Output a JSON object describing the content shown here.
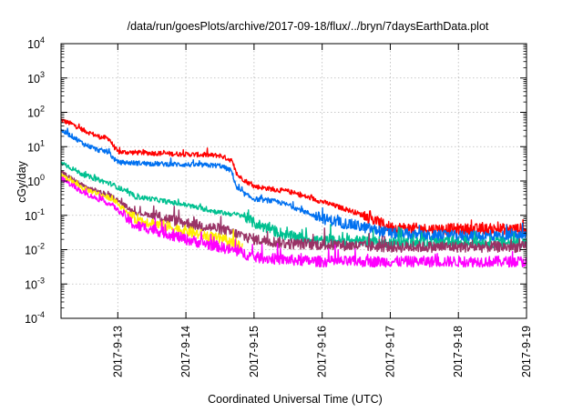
{
  "chart_data": {
    "type": "line",
    "title": "/data/run/goesPlots/archive/2017-09-18/flux/../bryn/7daysEarthData.plot",
    "xlabel": "Coordinated Universal Time (UTC)",
    "ylabel": "cGy/day",
    "y_scale": "log",
    "ylim": [
      0.0001,
      10000
    ],
    "y_ticks": [
      {
        "value": 0.0001,
        "base": "10",
        "exp": "-4"
      },
      {
        "value": 0.001,
        "base": "10",
        "exp": "-3"
      },
      {
        "value": 0.01,
        "base": "10",
        "exp": "-2"
      },
      {
        "value": 0.1,
        "base": "10",
        "exp": "-1"
      },
      {
        "value": 1,
        "base": "10",
        "exp": "0"
      },
      {
        "value": 10,
        "base": "10",
        "exp": "1"
      },
      {
        "value": 100,
        "base": "10",
        "exp": "2"
      },
      {
        "value": 1000,
        "base": "10",
        "exp": "3"
      },
      {
        "value": 10000,
        "base": "10",
        "exp": "4"
      }
    ],
    "xlim": [
      "2017-09-12T04:00",
      "2017-09-19T00:00"
    ],
    "x_ticks": [
      "2017-9-13",
      "2017-9-14",
      "2017-9-15",
      "2017-9-16",
      "2017-9-17",
      "2017-9-18",
      "2017-9-19"
    ],
    "grid": true,
    "series": [
      {
        "color": "#ff0000",
        "x": [
          "2017-09-12T04:00",
          "2017-09-12T08:00",
          "2017-09-12T12:00",
          "2017-09-12T17:00",
          "2017-09-12T21:00",
          "2017-09-12T22:00",
          "2017-09-13T00:00",
          "2017-09-13T12:00",
          "2017-09-14T00:00",
          "2017-09-14T12:00",
          "2017-09-14T16:00",
          "2017-09-14T18:00",
          "2017-09-14T21:00",
          "2017-09-15T00:00",
          "2017-09-15T08:00",
          "2017-09-15T12:00",
          "2017-09-16T00:00",
          "2017-09-16T12:00",
          "2017-09-17T00:00",
          "2017-09-17T12:00",
          "2017-09-18T00:00",
          "2017-09-18T12:00",
          "2017-09-19T00:00"
        ],
        "y": [
          60,
          45,
          30,
          20,
          17,
          12,
          7,
          6.5,
          6,
          5.5,
          4,
          1.5,
          1,
          0.7,
          0.55,
          0.5,
          0.25,
          0.12,
          0.045,
          0.04,
          0.04,
          0.04,
          0.04
        ]
      },
      {
        "color": "#0070f0",
        "x": [
          "2017-09-12T04:00",
          "2017-09-12T08:00",
          "2017-09-12T12:00",
          "2017-09-12T17:00",
          "2017-09-12T21:00",
          "2017-09-12T22:00",
          "2017-09-13T00:00",
          "2017-09-13T12:00",
          "2017-09-14T00:00",
          "2017-09-14T12:00",
          "2017-09-14T16:00",
          "2017-09-14T18:00",
          "2017-09-14T21:00",
          "2017-09-15T00:00",
          "2017-09-15T08:00",
          "2017-09-15T12:00",
          "2017-09-16T00:00",
          "2017-09-16T12:00",
          "2017-09-17T00:00",
          "2017-09-17T12:00",
          "2017-09-18T00:00",
          "2017-09-18T12:00",
          "2017-09-19T00:00"
        ],
        "y": [
          30,
          20,
          12,
          8,
          7,
          5,
          3.5,
          3.2,
          3,
          2.8,
          2,
          0.6,
          0.4,
          0.3,
          0.25,
          0.2,
          0.08,
          0.05,
          0.03,
          0.025,
          0.025,
          0.025,
          0.025
        ]
      },
      {
        "color": "#00c090",
        "x": [
          "2017-09-12T04:00",
          "2017-09-12T12:00",
          "2017-09-12T22:00",
          "2017-09-13T06:00",
          "2017-09-13T12:00",
          "2017-09-14T00:00",
          "2017-09-14T12:00",
          "2017-09-14T20:00",
          "2017-09-15T00:00",
          "2017-09-15T12:00",
          "2017-09-16T00:00",
          "2017-09-16T12:00",
          "2017-09-17T00:00",
          "2017-09-18T00:00",
          "2017-09-19T00:00"
        ],
        "y": [
          3.5,
          1.5,
          0.8,
          0.35,
          0.3,
          0.2,
          0.12,
          0.1,
          0.06,
          0.025,
          0.018,
          0.018,
          0.016,
          0.016,
          0.016
        ]
      },
      {
        "color": "#993366",
        "x": [
          "2017-09-12T04:00",
          "2017-09-12T12:00",
          "2017-09-12T22:00",
          "2017-09-13T06:00",
          "2017-09-13T12:00",
          "2017-09-14T00:00",
          "2017-09-14T12:00",
          "2017-09-14T20:00",
          "2017-09-15T00:00",
          "2017-09-15T12:00",
          "2017-09-16T00:00",
          "2017-09-16T12:00",
          "2017-09-17T00:00",
          "2017-09-18T00:00",
          "2017-09-19T00:00"
        ],
        "y": [
          1.8,
          0.7,
          0.35,
          0.12,
          0.1,
          0.06,
          0.04,
          0.025,
          0.02,
          0.015,
          0.014,
          0.013,
          0.012,
          0.012,
          0.012
        ]
      },
      {
        "color": "#ffee00",
        "x": [
          "2017-09-12T04:00",
          "2017-09-12T12:00",
          "2017-09-12T22:00",
          "2017-09-13T06:00",
          "2017-09-13T12:00",
          "2017-09-14T00:00",
          "2017-09-14T12:00",
          "2017-09-14T20:00"
        ],
        "y": [
          1.5,
          0.6,
          0.3,
          0.08,
          0.06,
          0.035,
          0.02,
          0.012
        ]
      },
      {
        "color": "#ff00ff",
        "x": [
          "2017-09-12T04:00",
          "2017-09-12T12:00",
          "2017-09-12T22:00",
          "2017-09-13T06:00",
          "2017-09-13T12:00",
          "2017-09-14T00:00",
          "2017-09-14T12:00",
          "2017-09-14T20:00",
          "2017-09-15T00:00",
          "2017-09-15T12:00",
          "2017-09-16T00:00",
          "2017-09-16T12:00",
          "2017-09-17T00:00",
          "2017-09-18T00:00",
          "2017-09-19T00:00"
        ],
        "y": [
          1.2,
          0.45,
          0.2,
          0.05,
          0.04,
          0.02,
          0.012,
          0.008,
          0.006,
          0.005,
          0.0045,
          0.0045,
          0.0045,
          0.0045,
          0.0045
        ]
      }
    ]
  }
}
